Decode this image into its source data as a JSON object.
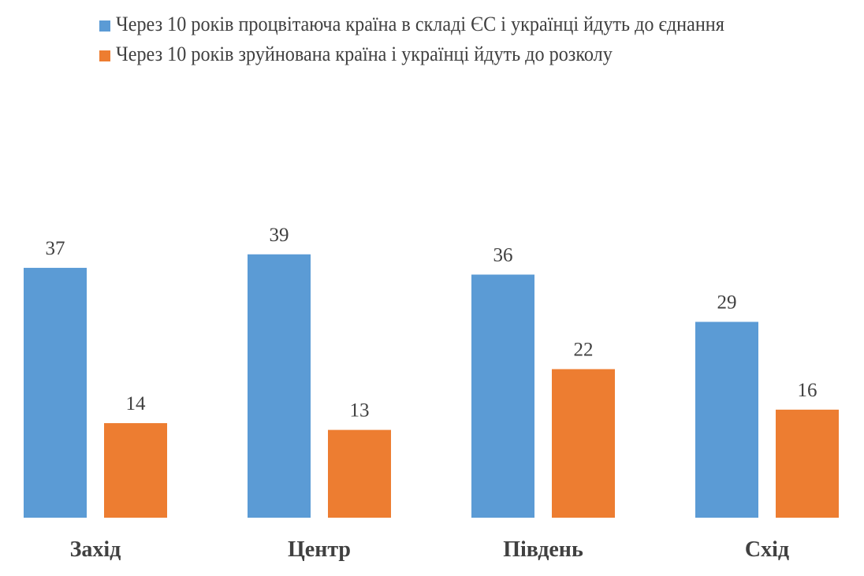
{
  "chart_data": {
    "type": "bar",
    "title": "",
    "xlabel": "",
    "ylabel": "",
    "categories": [
      "Захід",
      "Центр",
      "Південь",
      "Схід"
    ],
    "series": [
      {
        "name": "Через 10 років процвітаюча країна в складі ЄС і українці йдуть до єднання",
        "color": "#5b9bd5",
        "values": [
          37,
          39,
          36,
          29
        ]
      },
      {
        "name": "Через 10 років зруйнована країна і українці йдуть до розколу",
        "color": "#ed7d31",
        "values": [
          14,
          13,
          22,
          16
        ]
      }
    ],
    "ylim": [
      0,
      40
    ],
    "grid": false,
    "legend": "top"
  }
}
